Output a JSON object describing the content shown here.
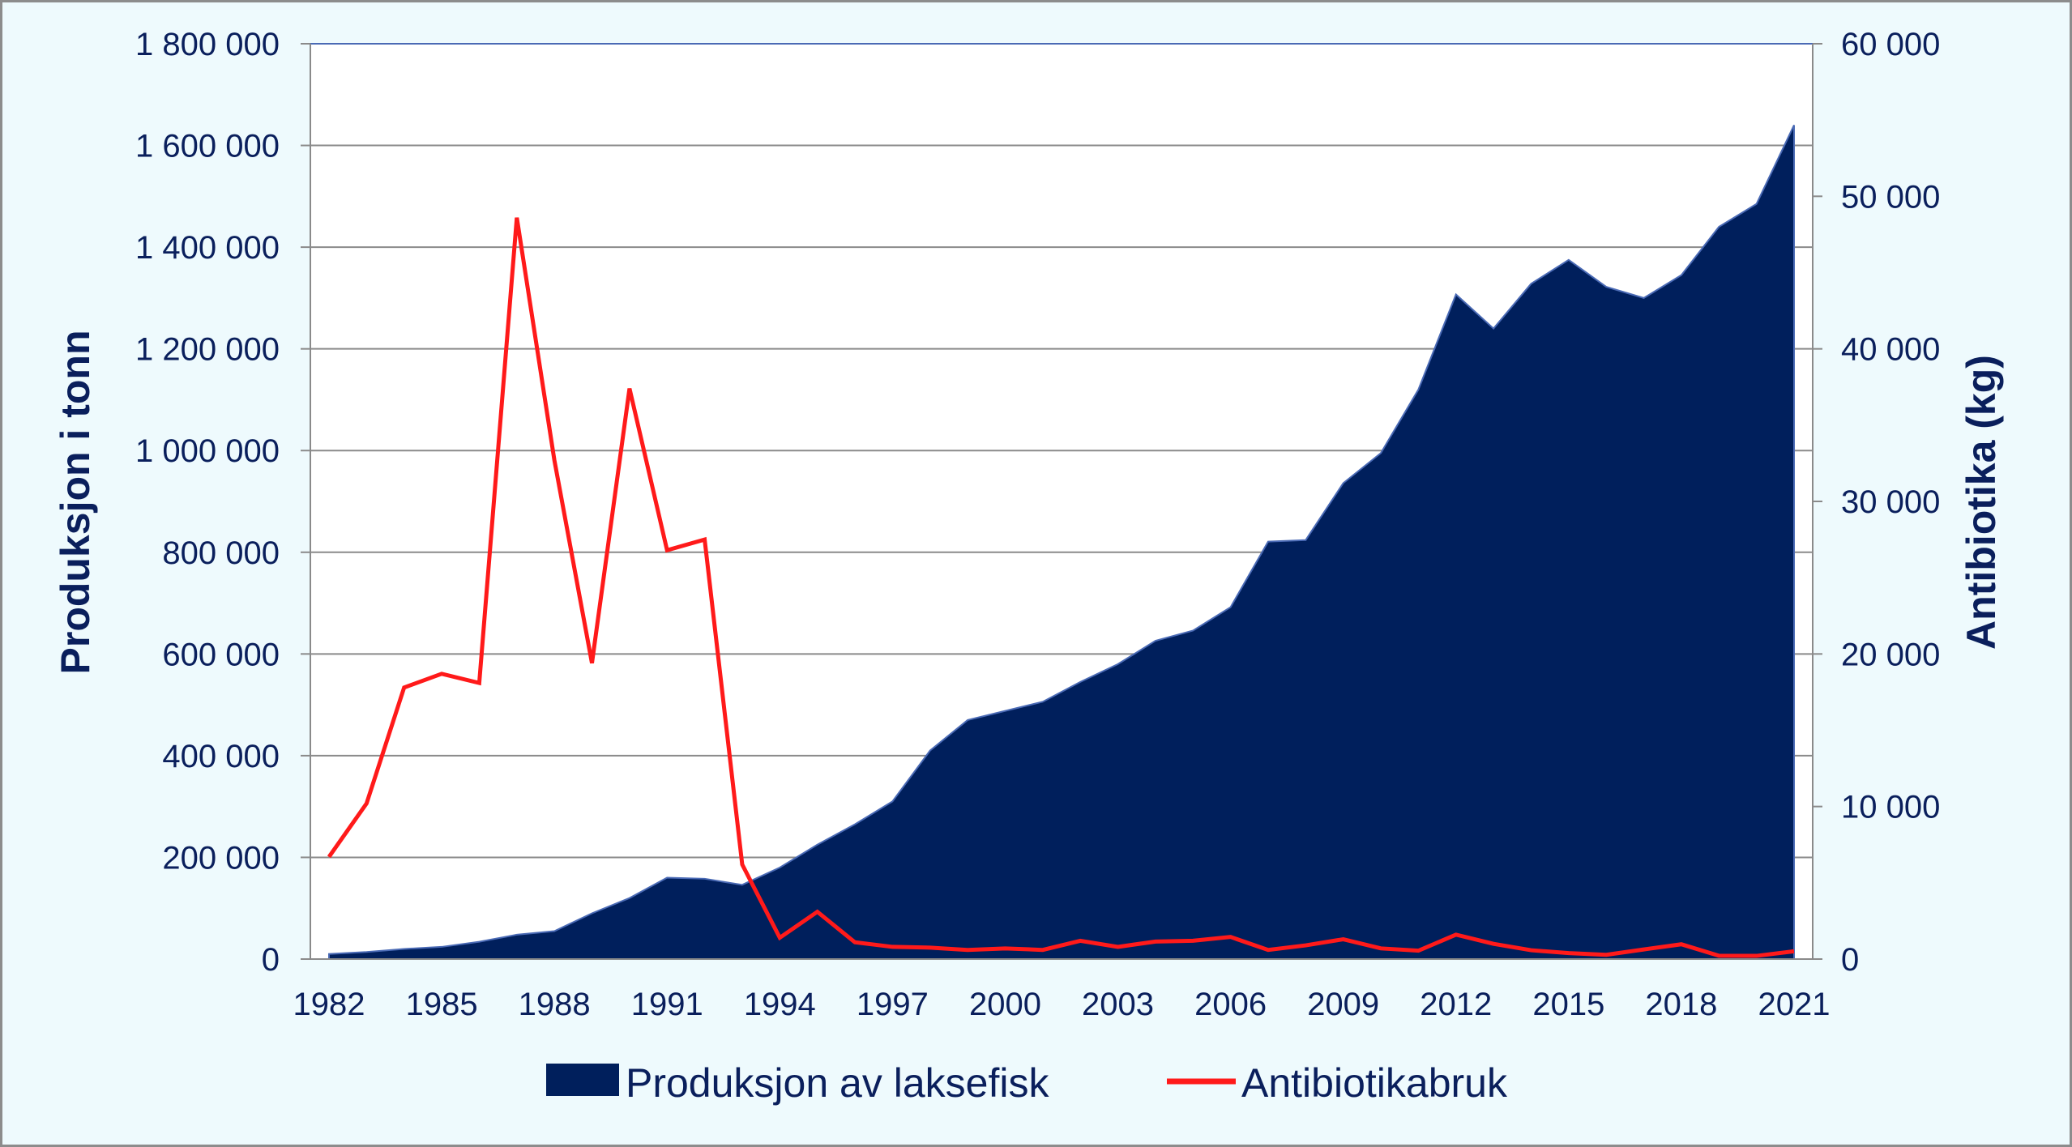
{
  "chart_data": {
    "type": "area",
    "x": [
      1982,
      1983,
      1984,
      1985,
      1986,
      1987,
      1988,
      1989,
      1990,
      1991,
      1992,
      1993,
      1994,
      1995,
      1996,
      1997,
      1998,
      1999,
      2000,
      2001,
      2002,
      2003,
      2004,
      2005,
      2006,
      2007,
      2008,
      2009,
      2010,
      2011,
      2012,
      2013,
      2014,
      2015,
      2016,
      2017,
      2018,
      2019,
      2020,
      2021
    ],
    "xticks": [
      "1982",
      "1985",
      "1988",
      "1991",
      "1994",
      "1997",
      "2000",
      "2003",
      "2006",
      "2009",
      "2012",
      "2015",
      "2018",
      "2021"
    ],
    "series": [
      {
        "name": "Produksjon av laksefisk",
        "type": "area",
        "axis": "left",
        "color": "#001f5c",
        "values": [
          10000,
          14000,
          20000,
          24000,
          34000,
          48000,
          55000,
          90000,
          120000,
          160000,
          158000,
          146000,
          180000,
          225000,
          265000,
          310000,
          410000,
          470000,
          488000,
          506000,
          545000,
          580000,
          626000,
          646000,
          692000,
          821000,
          824000,
          936000,
          995000,
          1120000,
          1307000,
          1240000,
          1328000,
          1375000,
          1322000,
          1300000,
          1345000,
          1440000,
          1485000,
          1640000
        ]
      },
      {
        "name": "Antibiotikabruk",
        "type": "line",
        "axis": "right",
        "color": "#ff1a1a",
        "values": [
          6700,
          10200,
          17800,
          18700,
          18100,
          48600,
          32700,
          19400,
          37400,
          26800,
          27500,
          6200,
          1400,
          3100,
          1100,
          800,
          750,
          600,
          700,
          600,
          1200,
          800,
          1150,
          1200,
          1450,
          600,
          900,
          1300,
          700,
          550,
          1600,
          1000,
          580,
          390,
          280,
          630,
          970,
          220,
          210,
          510
        ]
      }
    ],
    "ylabel": "Produksjon i tonn",
    "ylim": [
      0,
      1800000
    ],
    "yticks": [
      "0",
      "200 000",
      "400 000",
      "600 000",
      "800 000",
      "1 000 000",
      "1 200 000",
      "1 400 000",
      "1 600 000",
      "1 800 000"
    ],
    "y2label": "Antibiotika (kg)",
    "y2lim": [
      0,
      60000
    ],
    "y2ticks": [
      "0",
      "10 000",
      "20 000",
      "30 000",
      "40 000",
      "50 000",
      "60 000"
    ],
    "grid": true,
    "legend_position": "bottom"
  }
}
